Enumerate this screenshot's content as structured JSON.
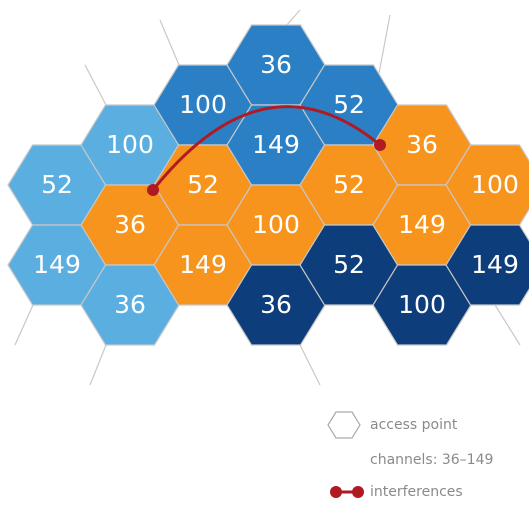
{
  "nodes": [
    {
      "label": "52",
      "color": "#5aaee0"
    },
    {
      "label": "149",
      "color": "#5aaee0"
    },
    {
      "label": "100",
      "color": "#5aaee0"
    },
    {
      "label": "36",
      "color": "#f7941d"
    },
    {
      "label": "36",
      "color": "#5aaee0"
    },
    {
      "label": "100",
      "color": "#2b80c5"
    },
    {
      "label": "52",
      "color": "#f7941d"
    },
    {
      "label": "149",
      "color": "#f7941d"
    },
    {
      "label": "36",
      "color": "#2b80c5"
    },
    {
      "label": "149",
      "color": "#2b80c5"
    },
    {
      "label": "100",
      "color": "#f7941d"
    },
    {
      "label": "36",
      "color": "#0d3d7a"
    },
    {
      "label": "52",
      "color": "#2b80c5"
    },
    {
      "label": "52",
      "color": "#f7941d"
    },
    {
      "label": "52",
      "color": "#0d3d7a"
    },
    {
      "label": "36",
      "color": "#f7941d"
    },
    {
      "label": "149",
      "color": "#f7941d"
    },
    {
      "label": "100",
      "color": "#0d3d7a"
    },
    {
      "label": "100",
      "color": "#f7941d"
    },
    {
      "label": "149",
      "color": "#0d3d7a"
    }
  ],
  "interference": {
    "color": "#b01a22"
  },
  "legend": {
    "access_point": "access point",
    "channels": "channels: 36–149",
    "interferences": "interferences"
  }
}
